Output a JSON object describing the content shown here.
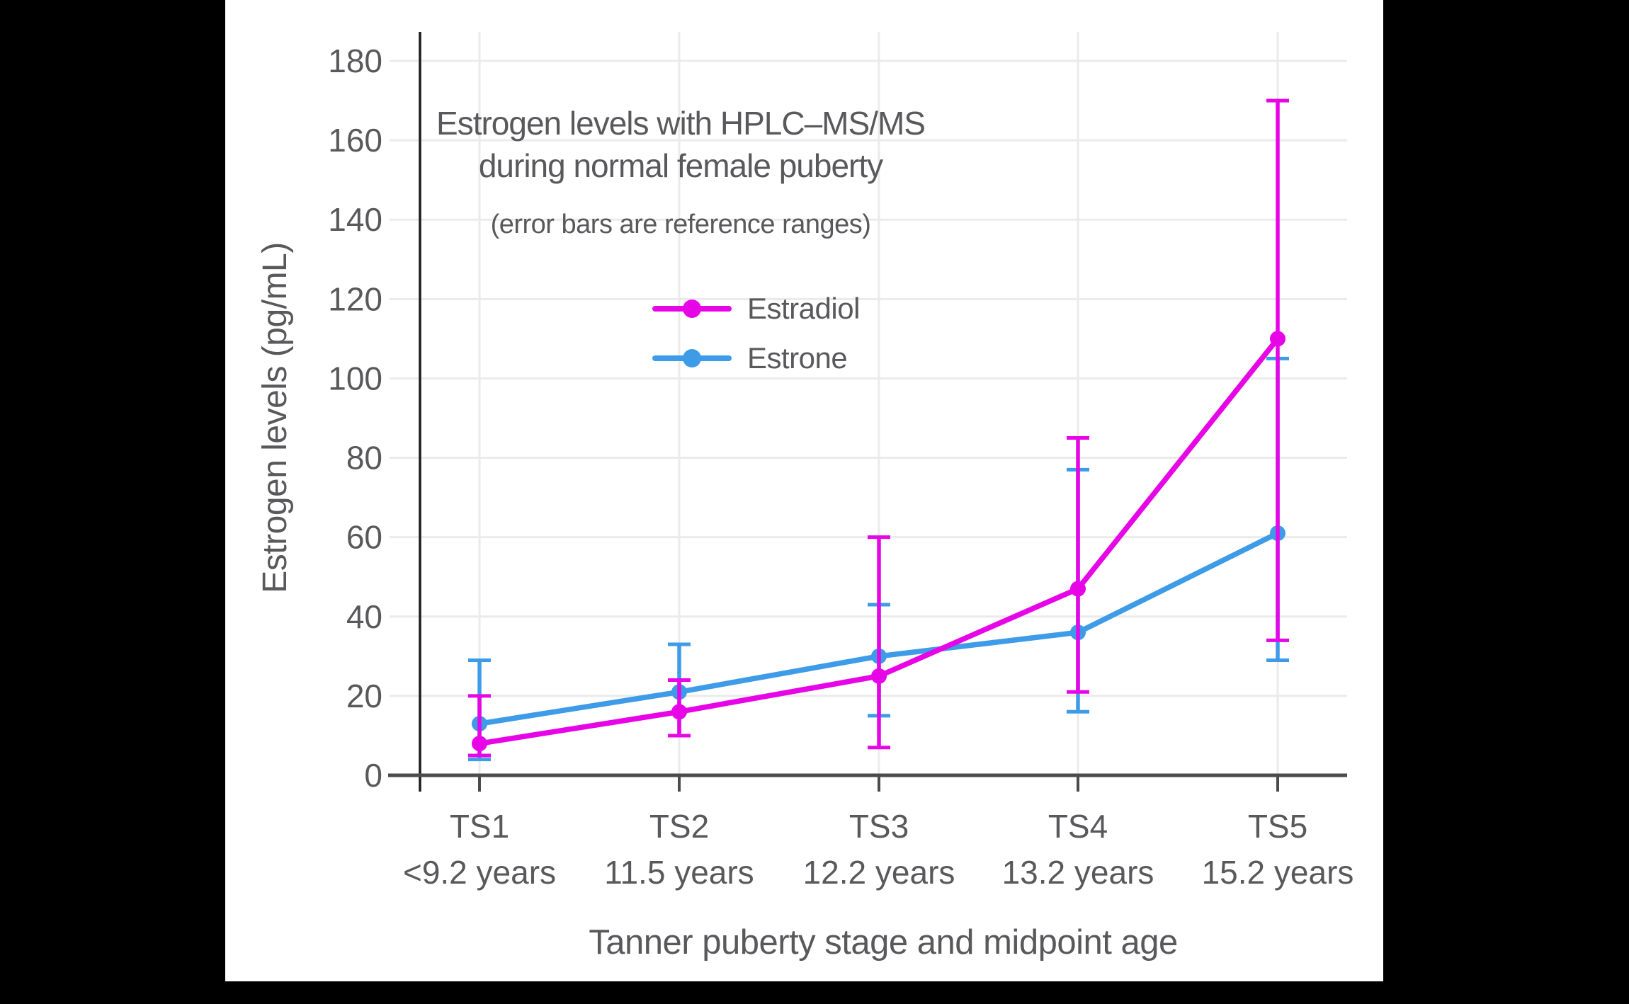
{
  "colors": {
    "page_background": "#000000",
    "figure_background": "#ffffff",
    "estradiol": "#e705e7",
    "estrone": "#3e9be7",
    "text": "#59595c",
    "axis_line": "#4b4b4b",
    "spine": "#1c1c1c",
    "gridline": "#ebebeb"
  },
  "chart_data": {
    "type": "line",
    "title_lines": [
      "Estrogen levels with HPLC–MS/MS",
      "during normal female puberty"
    ],
    "subtitle": "(error bars are reference ranges)",
    "xlabel": "Tanner puberty stage and midpoint age",
    "ylabel": "Estrogen levels (pg/mL)",
    "ylim": [
      0,
      180
    ],
    "yticks": [
      0,
      20,
      40,
      60,
      80,
      100,
      120,
      140,
      160,
      180
    ],
    "grid": true,
    "legend_position": "upper-center-inside",
    "error_bar_meaning": "reference ranges",
    "categories": [
      "TS1",
      "TS2",
      "TS3",
      "TS4",
      "TS5"
    ],
    "category_sublabels": [
      "<9.2 years",
      "11.5 years",
      "12.2 years",
      "13.2 years",
      "15.2 years"
    ],
    "series": [
      {
        "name": "Estradiol",
        "color": "#e705e7",
        "values": [
          8,
          16,
          25,
          47,
          110
        ],
        "error_low": [
          5,
          10,
          7,
          21,
          34
        ],
        "error_high": [
          20,
          24,
          60,
          85,
          170
        ]
      },
      {
        "name": "Estrone",
        "color": "#3e9be7",
        "values": [
          13,
          21,
          30,
          36,
          61
        ],
        "error_low": [
          4,
          10,
          15,
          16,
          29
        ],
        "error_high": [
          29,
          33,
          43,
          77,
          105
        ]
      }
    ]
  }
}
